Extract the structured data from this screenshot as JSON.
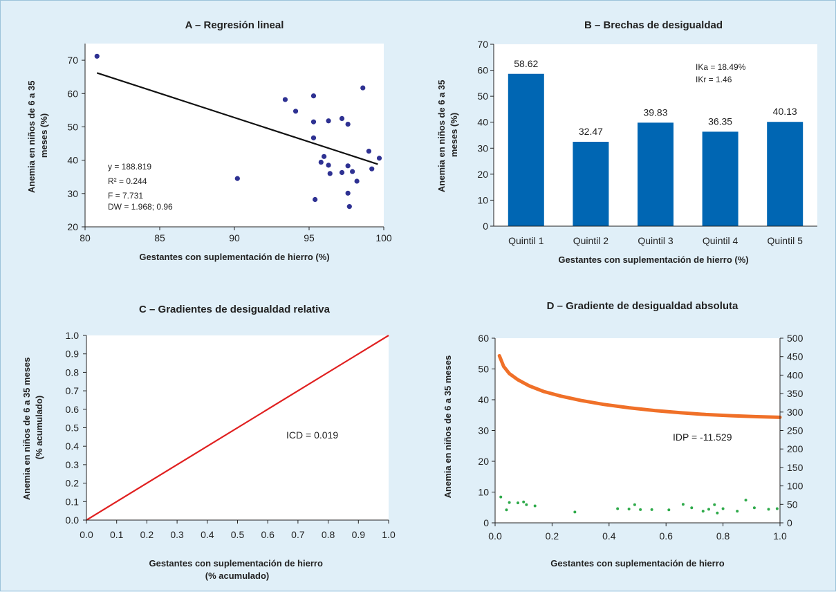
{
  "colors": {
    "background": "#e0eff8",
    "plot_background": "#ffffff",
    "scatter_point": "#2e3192",
    "bar": "#0066b3",
    "red_line": "#e02020",
    "orange_curve": "#f07028",
    "green_point": "#2eaa4a",
    "text": "#222222"
  },
  "chart_data": [
    {
      "id": "A",
      "type": "scatter",
      "title": "A – Regresión lineal",
      "xlabel": "Gestantes con suplementación de hierro (%)",
      "ylabel": "Anemia en niños de 6 a 35 meses (%)",
      "xlim": [
        80,
        100
      ],
      "ylim": [
        20,
        75
      ],
      "xticks": [
        "80",
        "85",
        "90",
        "95",
        "100"
      ],
      "yticks": [
        "20",
        "30",
        "40",
        "50",
        "60",
        "70"
      ],
      "grid": false,
      "points": [
        {
          "x": 80.8,
          "y": 71.2
        },
        {
          "x": 90.2,
          "y": 34.5
        },
        {
          "x": 93.4,
          "y": 58.2
        },
        {
          "x": 94.1,
          "y": 54.7
        },
        {
          "x": 95.3,
          "y": 59.3
        },
        {
          "x": 95.3,
          "y": 51.5
        },
        {
          "x": 95.3,
          "y": 46.7
        },
        {
          "x": 95.4,
          "y": 28.2
        },
        {
          "x": 95.8,
          "y": 39.4
        },
        {
          "x": 96.0,
          "y": 41.1
        },
        {
          "x": 96.3,
          "y": 51.8
        },
        {
          "x": 96.3,
          "y": 38.5
        },
        {
          "x": 96.4,
          "y": 36.0
        },
        {
          "x": 97.2,
          "y": 52.5
        },
        {
          "x": 97.2,
          "y": 36.3
        },
        {
          "x": 97.6,
          "y": 50.8
        },
        {
          "x": 97.6,
          "y": 38.3
        },
        {
          "x": 97.6,
          "y": 30.1
        },
        {
          "x": 97.7,
          "y": 26.1
        },
        {
          "x": 97.9,
          "y": 36.6
        },
        {
          "x": 98.2,
          "y": 33.7
        },
        {
          "x": 98.6,
          "y": 61.7
        },
        {
          "x": 99.0,
          "y": 42.7
        },
        {
          "x": 99.2,
          "y": 37.4
        },
        {
          "x": 99.7,
          "y": 40.6
        }
      ],
      "regression_line": {
        "x": [
          80.8,
          99.6
        ],
        "y": [
          66.2,
          38.8
        ]
      },
      "annotations": [
        "y = 188.819",
        "R² = 0.244",
        "F = 7.731",
        "DW = 1.968; 0.96"
      ]
    },
    {
      "id": "B",
      "type": "bar",
      "title": "B – Brechas de desigualdad",
      "xlabel": "Gestantes con suplementación de hierro (%)",
      "ylabel": "Anemia en niños de 6 a 35 meses (%)",
      "ylim": [
        0,
        70
      ],
      "yticks": [
        "0",
        "10",
        "20",
        "30",
        "40",
        "50",
        "60",
        "70"
      ],
      "categories": [
        "Quintil 1",
        "Quintil 2",
        "Quintil 3",
        "Quintil 4",
        "Quintil 5"
      ],
      "values": [
        58.62,
        32.47,
        39.83,
        36.35,
        40.13
      ],
      "value_labels": [
        "58.62",
        "32.47",
        "39.83",
        "36.35",
        "40.13"
      ],
      "grid": false,
      "annotations": [
        "IKa = 18.49%",
        "IKr = 1.46"
      ]
    },
    {
      "id": "C",
      "type": "line",
      "title": "C – Gradientes de desigualdad relativa",
      "xlabel": "Gestantes con suplementación de hierro (% acumulado)",
      "ylabel": "Anemia en niños de 6 a 35 meses (% acumulado)",
      "xlim": [
        0,
        1
      ],
      "ylim": [
        0,
        1
      ],
      "xticks": [
        "0.0",
        "0.1",
        "0.2",
        "0.3",
        "0.4",
        "0.5",
        "0.6",
        "0.7",
        "0.8",
        "0.9",
        "1.0"
      ],
      "yticks": [
        "0.0",
        "0.1",
        "0.2",
        "0.3",
        "0.4",
        "0.5",
        "0.6",
        "0.7",
        "0.8",
        "0.9",
        "1.0"
      ],
      "grid": false,
      "line": {
        "x": [
          0,
          1
        ],
        "y": [
          0,
          1
        ]
      },
      "annotations": [
        "ICD = 0.019"
      ]
    },
    {
      "id": "D",
      "type": "line",
      "title": "D – Gradiente de desigualdad absoluta",
      "xlabel": "Gestantes con suplementación de hierro",
      "ylabel": "Anemia en niños de 6 a 35 meses",
      "xlim": [
        0,
        1
      ],
      "ylim": [
        0,
        60
      ],
      "y2lim": [
        0,
        500
      ],
      "xticks": [
        "0.0",
        "0.2",
        "0.4",
        "0.6",
        "0.8",
        "1.0"
      ],
      "yticks": [
        "0",
        "10",
        "20",
        "30",
        "40",
        "50",
        "60"
      ],
      "y2ticks": [
        "0",
        "50",
        "100",
        "150",
        "200",
        "250",
        "300",
        "350",
        "400",
        "450",
        "500"
      ],
      "grid": false,
      "curve": {
        "x": [
          0.015,
          0.03,
          0.05,
          0.08,
          0.12,
          0.17,
          0.23,
          0.3,
          0.38,
          0.47,
          0.56,
          0.65,
          0.74,
          0.83,
          0.92,
          1.0
        ],
        "y": [
          54.3,
          50.8,
          48.5,
          46.5,
          44.5,
          42.7,
          41.2,
          39.8,
          38.5,
          37.4,
          36.5,
          35.8,
          35.2,
          34.8,
          34.5,
          34.3
        ]
      },
      "points": [
        {
          "x": 0.02,
          "y": 8.4
        },
        {
          "x": 0.04,
          "y": 4.2
        },
        {
          "x": 0.05,
          "y": 6.6
        },
        {
          "x": 0.08,
          "y": 6.5
        },
        {
          "x": 0.1,
          "y": 6.8
        },
        {
          "x": 0.11,
          "y": 5.9
        },
        {
          "x": 0.14,
          "y": 5.5
        },
        {
          "x": 0.28,
          "y": 3.5
        },
        {
          "x": 0.43,
          "y": 4.6
        },
        {
          "x": 0.47,
          "y": 4.5
        },
        {
          "x": 0.49,
          "y": 5.9
        },
        {
          "x": 0.51,
          "y": 4.3
        },
        {
          "x": 0.55,
          "y": 4.3
        },
        {
          "x": 0.61,
          "y": 4.2
        },
        {
          "x": 0.66,
          "y": 6.0
        },
        {
          "x": 0.69,
          "y": 4.9
        },
        {
          "x": 0.73,
          "y": 3.8
        },
        {
          "x": 0.75,
          "y": 4.4
        },
        {
          "x": 0.77,
          "y": 5.9
        },
        {
          "x": 0.78,
          "y": 3.2
        },
        {
          "x": 0.8,
          "y": 4.6
        },
        {
          "x": 0.85,
          "y": 3.8
        },
        {
          "x": 0.88,
          "y": 7.4
        },
        {
          "x": 0.91,
          "y": 4.9
        },
        {
          "x": 0.96,
          "y": 4.4
        },
        {
          "x": 0.99,
          "y": 4.6
        }
      ],
      "annotations": [
        "IDP = -11.529"
      ]
    }
  ]
}
